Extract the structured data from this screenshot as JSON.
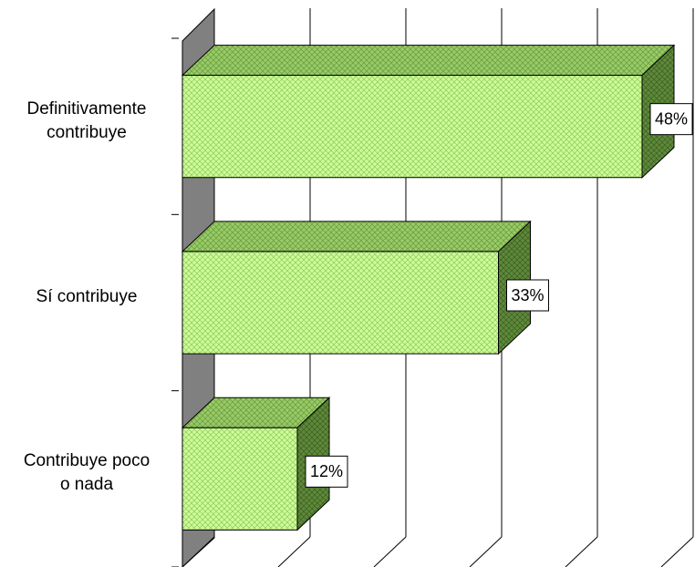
{
  "chart_data": {
    "type": "bar3d_horizontal",
    "categories": [
      "Definitivamente\ncontribuye",
      "Sí contribuye",
      "Contribuye poco\no nada"
    ],
    "values": [
      48,
      33,
      12
    ],
    "value_labels": [
      "48%",
      "33%",
      "12%"
    ],
    "xlim": [
      0,
      50
    ],
    "xticks": [
      0,
      10,
      20,
      30,
      40,
      50
    ],
    "grid": true,
    "color": "#ccff99"
  }
}
